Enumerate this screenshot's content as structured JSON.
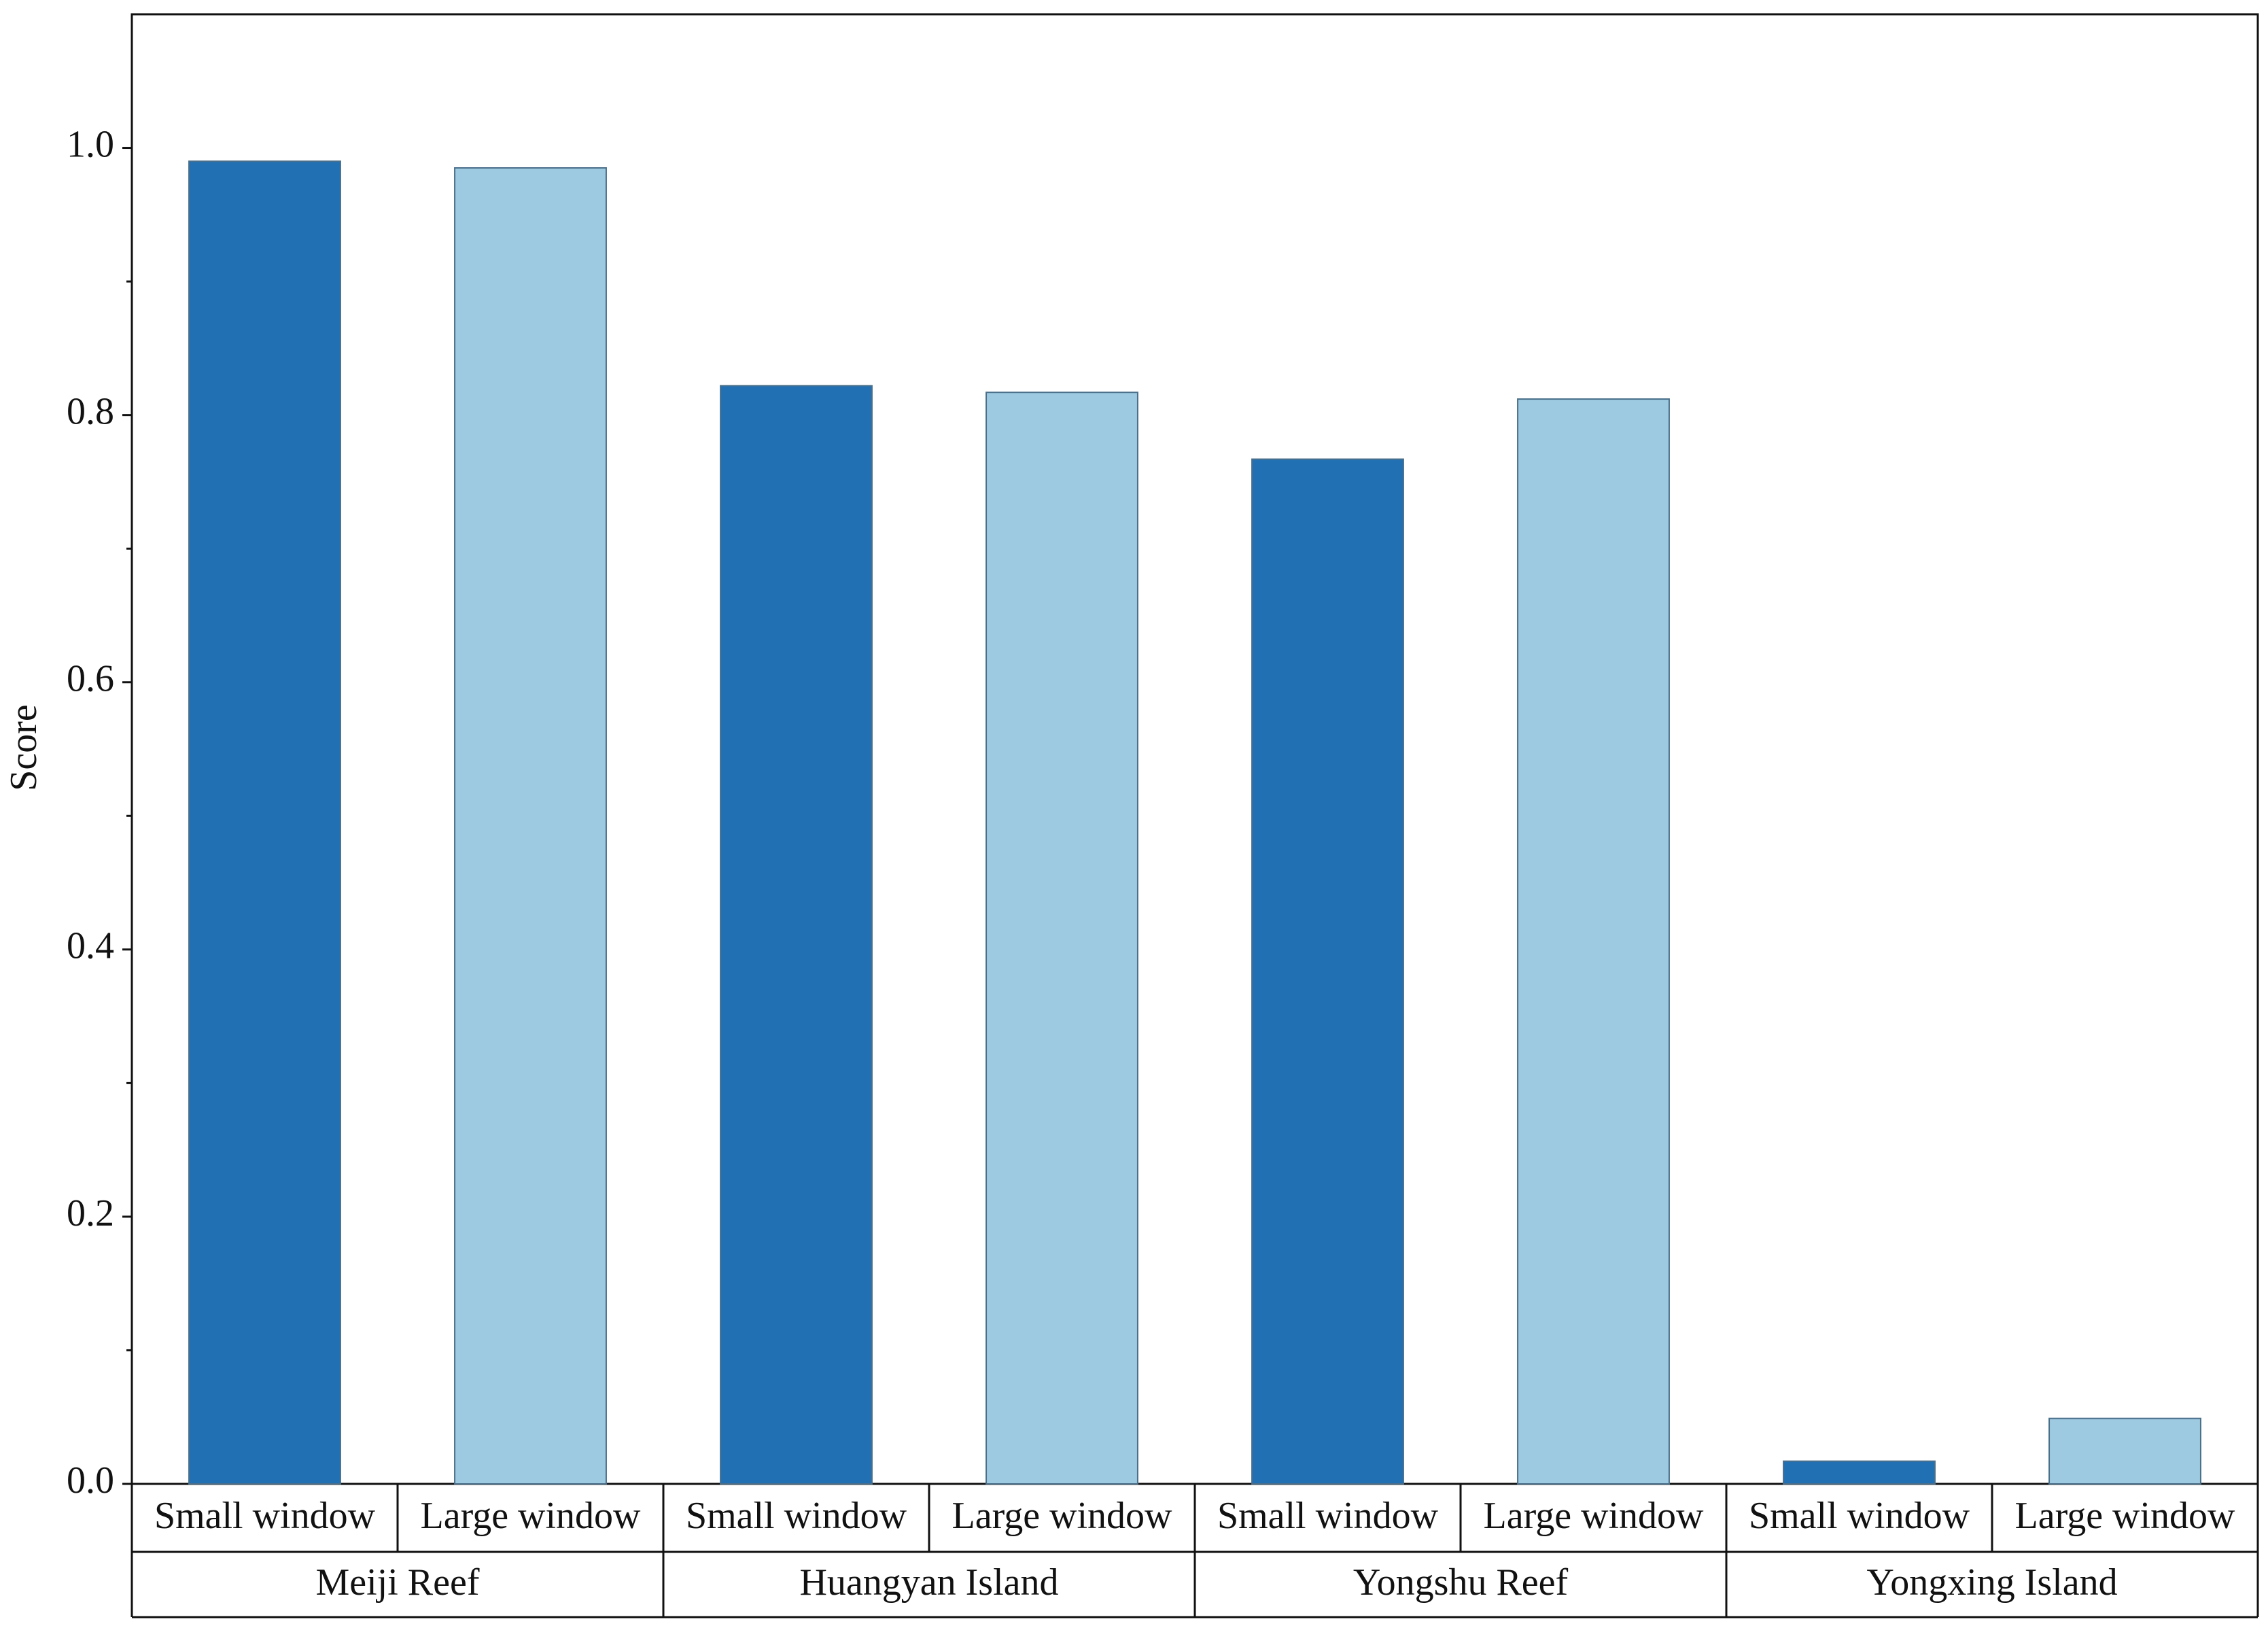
{
  "chart_data": {
    "type": "bar",
    "y_label": "Score",
    "categories": [
      "Meiji Reef",
      "Huangyan Island",
      "Yongshu Reef",
      "Yongxing Island"
    ],
    "series": [
      {
        "name": "Small window",
        "color": "#2270b4",
        "values": [
          0.99,
          0.822,
          0.767,
          0.017
        ]
      },
      {
        "name": "Large window",
        "color": "#9ecae1",
        "values": [
          0.985,
          0.817,
          0.812,
          0.049
        ]
      }
    ],
    "ylim": [
      0,
      1.1
    ],
    "yticks": [
      {
        "value": 0,
        "label": "0.0"
      },
      0.2,
      0.4,
      0.6,
      0.8,
      {
        "value": 1,
        "label": "1.0"
      }
    ],
    "grid": false
  }
}
